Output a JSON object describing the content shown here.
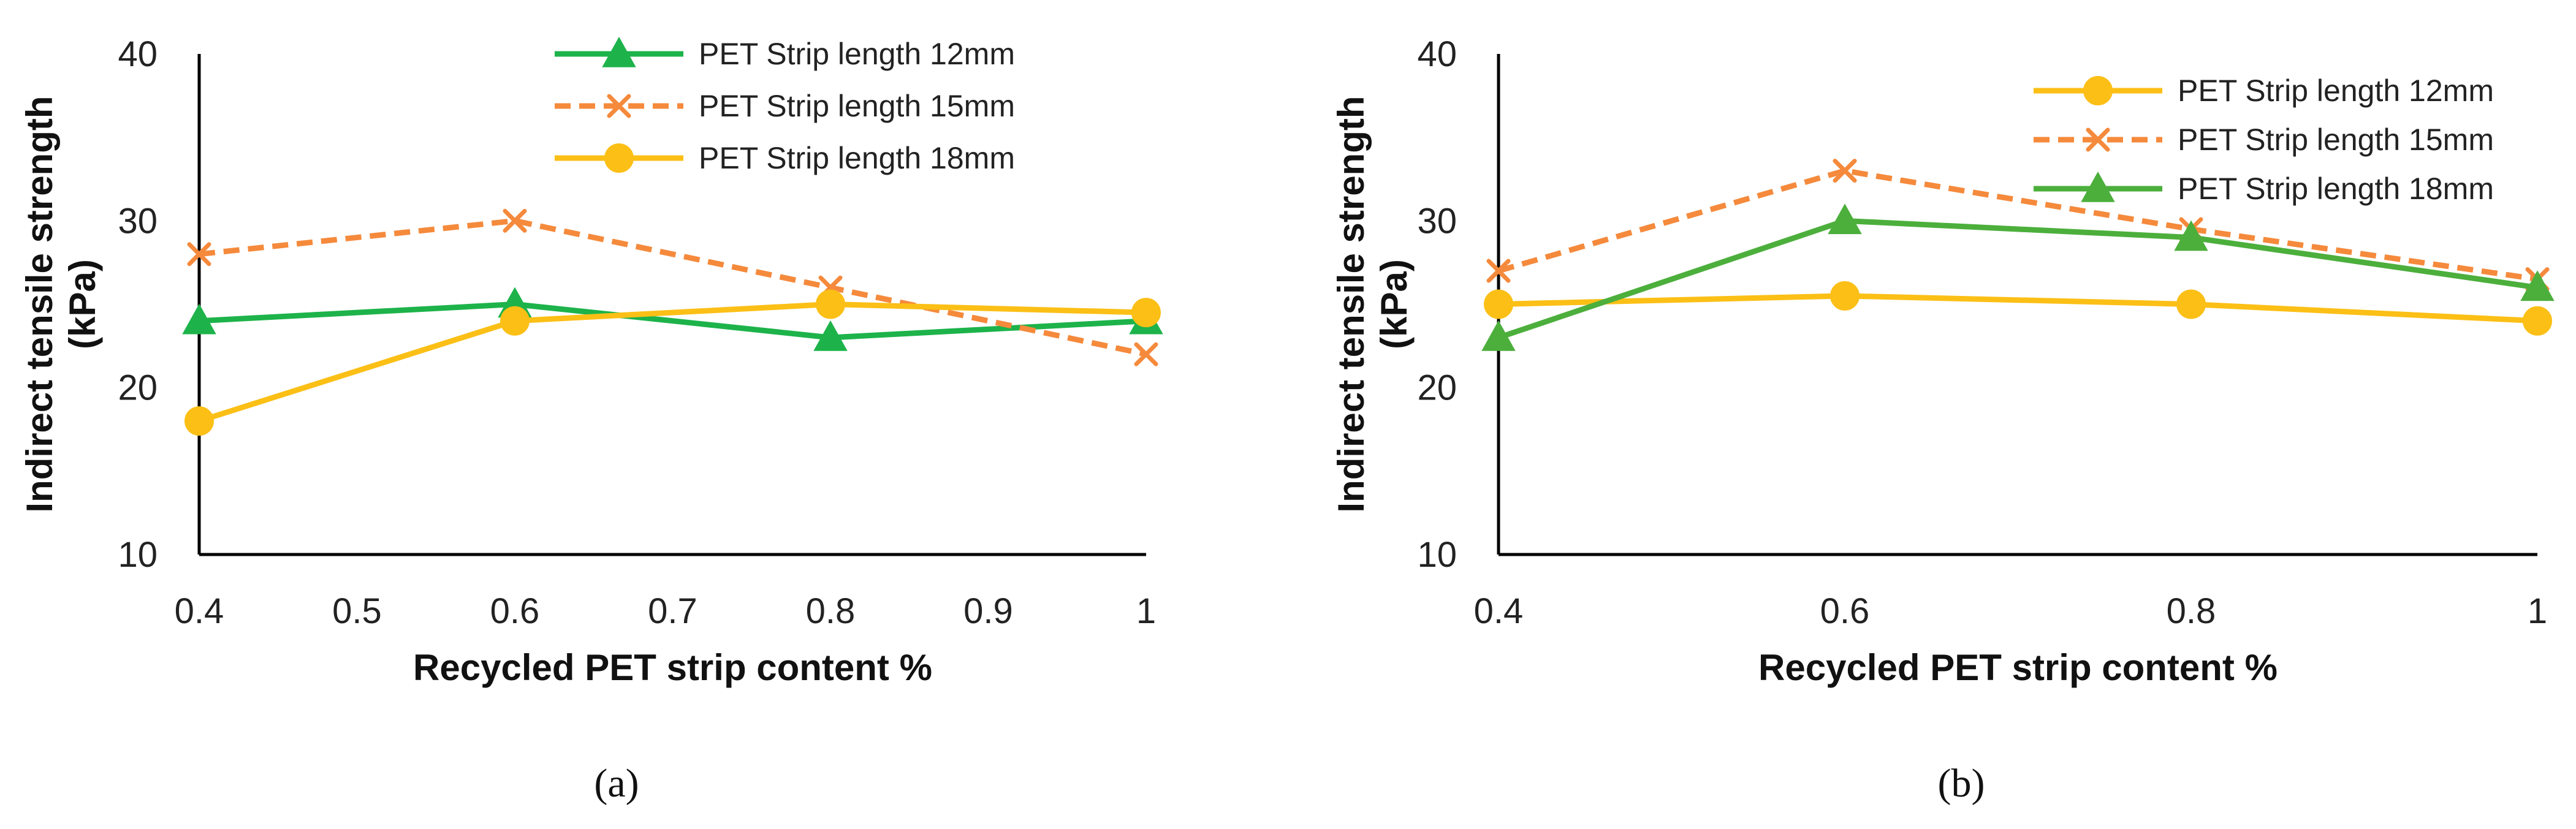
{
  "chart_data": [
    {
      "type": "line",
      "panel_label": "a",
      "xlabel": "Recycled PET strip content %",
      "ylabel_line1": "Indirect tensile strength",
      "ylabel_line2": "(kPa)",
      "xlim": [
        0.4,
        1.0
      ],
      "ylim": [
        10,
        40
      ],
      "xticks": [
        "0.4",
        "0.5",
        "0.6",
        "0.7",
        "0.8",
        "0.9",
        "1"
      ],
      "xtick_values": [
        0.4,
        0.5,
        0.6,
        0.7,
        0.8,
        0.9,
        1.0
      ],
      "yticks": [
        "10",
        "20",
        "30",
        "40"
      ],
      "ytick_values": [
        10,
        20,
        30,
        40
      ],
      "legend_position": "top-right",
      "series": [
        {
          "name": "PET Strip length 12mm",
          "color": "#1db34a",
          "dashed": false,
          "marker": "triangle",
          "x": [
            0.4,
            0.6,
            0.8,
            1.0
          ],
          "values": [
            24,
            25,
            23,
            24
          ]
        },
        {
          "name": "PET Strip length 15mm",
          "color": "#f58a3c",
          "dashed": true,
          "marker": "x",
          "x": [
            0.4,
            0.6,
            0.8,
            1.0
          ],
          "values": [
            28,
            30,
            26,
            22
          ]
        },
        {
          "name": "PET Strip length 18mm",
          "color": "#fbbf16",
          "dashed": false,
          "marker": "circle",
          "x": [
            0.4,
            0.6,
            0.8,
            1.0
          ],
          "values": [
            18,
            24,
            25,
            24.5
          ]
        }
      ]
    },
    {
      "type": "line",
      "panel_label": "b",
      "xlabel": "Recycled PET strip content %",
      "ylabel_line1": "Indirect tensile strength",
      "ylabel_line2": "(kPa)",
      "xlim": [
        0.4,
        1.0
      ],
      "ylim": [
        10,
        40
      ],
      "xticks": [
        "0.4",
        "0.6",
        "0.8",
        "1"
      ],
      "xtick_values": [
        0.4,
        0.6,
        0.8,
        1.0
      ],
      "yticks": [
        "10",
        "20",
        "30",
        "40"
      ],
      "ytick_values": [
        10,
        20,
        30,
        40
      ],
      "legend_position": "top-right",
      "series": [
        {
          "name": "PET Strip length 12mm",
          "color": "#fbbf16",
          "dashed": false,
          "marker": "circle",
          "x": [
            0.4,
            0.6,
            0.8,
            1.0
          ],
          "values": [
            25,
            25.5,
            25,
            24
          ]
        },
        {
          "name": "PET Strip length 15mm",
          "color": "#f58a3c",
          "dashed": true,
          "marker": "x",
          "x": [
            0.4,
            0.6,
            0.8,
            1.0
          ],
          "values": [
            27,
            33,
            29.5,
            26.5
          ]
        },
        {
          "name": "PET Strip length 18mm",
          "color": "#4caf3c",
          "dashed": false,
          "marker": "triangle",
          "x": [
            0.4,
            0.6,
            0.8,
            1.0
          ],
          "values": [
            23,
            30,
            29,
            26
          ]
        }
      ]
    }
  ],
  "captions": {
    "a": "(a)",
    "b": "(b)"
  }
}
